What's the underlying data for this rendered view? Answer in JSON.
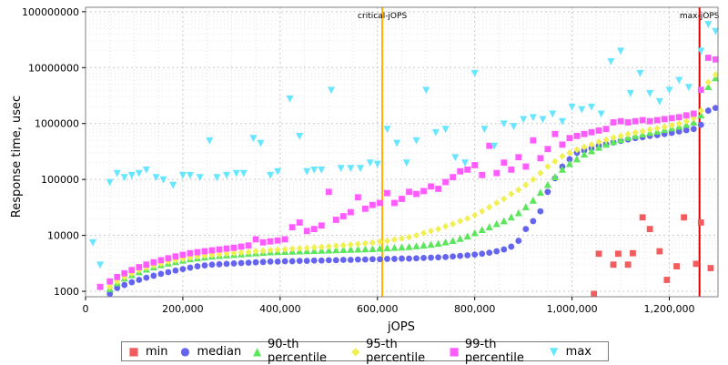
{
  "chart_data": {
    "type": "scatter",
    "xlabel": "jOPS",
    "ylabel": "Response time, usec",
    "y_scale": "log",
    "xlim": [
      0,
      1300000
    ],
    "ylim": [
      800,
      120000000
    ],
    "legend_position": "bottom",
    "x_ticks": [
      "0",
      "200,000",
      "400,000",
      "600,000",
      "800,000",
      "1,000,000",
      "1,200,000"
    ],
    "y_ticks": [
      "1000",
      "10000",
      "100000",
      "1000000",
      "10000000",
      "100000000"
    ],
    "markers": [
      {
        "label": "critical-jOPS",
        "x": 610000,
        "color": "#ffb000"
      },
      {
        "label": "max-jOPS",
        "x": 1262000,
        "color": "#dd0000"
      }
    ],
    "series": [
      {
        "name": "min",
        "color": "#f25c5c",
        "symbol": "square",
        "x": [
          1045000,
          1055000,
          1085000,
          1095000,
          1115000,
          1125000,
          1145000,
          1160000,
          1180000,
          1195000,
          1215000,
          1230000,
          1255000,
          1265000,
          1285000
        ],
        "y": [
          900,
          4700,
          3000,
          4700,
          3000,
          4800,
          21000,
          13000,
          5200,
          1600,
          2800,
          21000,
          3100,
          17000,
          2600
        ]
      },
      {
        "name": "median",
        "color": "#6464f0",
        "symbol": "circle",
        "x": [
          50000,
          65000,
          80000,
          95000,
          110000,
          125000,
          140000,
          155000,
          170000,
          185000,
          200000,
          215000,
          230000,
          245000,
          260000,
          275000,
          290000,
          305000,
          320000,
          335000,
          350000,
          365000,
          380000,
          395000,
          410000,
          425000,
          440000,
          455000,
          470000,
          485000,
          500000,
          515000,
          530000,
          545000,
          560000,
          575000,
          590000,
          605000,
          620000,
          635000,
          650000,
          665000,
          680000,
          695000,
          710000,
          725000,
          740000,
          755000,
          770000,
          785000,
          800000,
          815000,
          830000,
          845000,
          860000,
          875000,
          890000,
          905000,
          920000,
          935000,
          950000,
          965000,
          980000,
          995000,
          1010000,
          1025000,
          1040000,
          1055000,
          1070000,
          1085000,
          1100000,
          1115000,
          1130000,
          1145000,
          1160000,
          1175000,
          1190000,
          1205000,
          1220000,
          1235000,
          1250000,
          1265000,
          1280000,
          1295000
        ],
        "y": [
          900,
          1150,
          1300,
          1450,
          1600,
          1750,
          1900,
          2050,
          2200,
          2350,
          2500,
          2650,
          2800,
          2900,
          3000,
          3050,
          3100,
          3150,
          3200,
          3250,
          3300,
          3350,
          3400,
          3400,
          3450,
          3450,
          3500,
          3500,
          3550,
          3550,
          3600,
          3600,
          3650,
          3650,
          3700,
          3700,
          3750,
          3750,
          3800,
          3800,
          3850,
          3850,
          3900,
          3950,
          4000,
          4050,
          4100,
          4200,
          4300,
          4400,
          4550,
          4700,
          4900,
          5200,
          5600,
          6300,
          8000,
          13000,
          18000,
          27000,
          60000,
          105000,
          170000,
          230000,
          300000,
          330000,
          360000,
          400000,
          430000,
          460000,
          490000,
          520000,
          550000,
          570000,
          600000,
          620000,
          650000,
          680000,
          720000,
          760000,
          800000,
          950000,
          1700000,
          1900000
        ]
      },
      {
        "name": "90-th percentile",
        "color": "#5ce65c",
        "symbol": "triangle-up",
        "x": [
          50000,
          65000,
          80000,
          95000,
          110000,
          125000,
          140000,
          155000,
          170000,
          185000,
          200000,
          215000,
          230000,
          245000,
          260000,
          275000,
          290000,
          305000,
          320000,
          335000,
          350000,
          365000,
          380000,
          395000,
          410000,
          425000,
          440000,
          455000,
          470000,
          485000,
          500000,
          515000,
          530000,
          545000,
          560000,
          575000,
          590000,
          605000,
          620000,
          635000,
          650000,
          665000,
          680000,
          695000,
          710000,
          725000,
          740000,
          755000,
          770000,
          785000,
          800000,
          815000,
          830000,
          845000,
          860000,
          875000,
          890000,
          905000,
          920000,
          935000,
          950000,
          965000,
          980000,
          995000,
          1010000,
          1025000,
          1040000,
          1055000,
          1070000,
          1085000,
          1100000,
          1115000,
          1130000,
          1145000,
          1160000,
          1175000,
          1190000,
          1205000,
          1220000,
          1235000,
          1250000,
          1265000,
          1280000,
          1295000
        ],
        "y": [
          1100,
          1400,
          1700,
          1950,
          2200,
          2450,
          2700,
          2950,
          3150,
          3350,
          3550,
          3750,
          3900,
          4050,
          4200,
          4300,
          4400,
          4500,
          4600,
          4700,
          4800,
          4900,
          5000,
          5050,
          5100,
          5150,
          5200,
          5250,
          5300,
          5350,
          5400,
          5450,
          5500,
          5550,
          5600,
          5650,
          5700,
          5800,
          5900,
          6000,
          6100,
          6200,
          6400,
          6600,
          6800,
          7100,
          7500,
          8000,
          8700,
          9600,
          11000,
          12500,
          14000,
          16000,
          18000,
          21000,
          25000,
          32000,
          42000,
          58000,
          80000,
          110000,
          150000,
          190000,
          230000,
          280000,
          320000,
          370000,
          420000,
          470000,
          510000,
          560000,
          600000,
          640000,
          680000,
          720000,
          770000,
          820000,
          880000,
          950000,
          1050000,
          1400000,
          4500000,
          6500000
        ]
      },
      {
        "name": "95-th percentile",
        "color": "#f0f050",
        "symbol": "diamond",
        "x": [
          50000,
          65000,
          80000,
          95000,
          110000,
          125000,
          140000,
          155000,
          170000,
          185000,
          200000,
          215000,
          230000,
          245000,
          260000,
          275000,
          290000,
          305000,
          320000,
          335000,
          350000,
          365000,
          380000,
          395000,
          410000,
          425000,
          440000,
          455000,
          470000,
          485000,
          500000,
          515000,
          530000,
          545000,
          560000,
          575000,
          590000,
          605000,
          620000,
          635000,
          650000,
          665000,
          680000,
          695000,
          710000,
          725000,
          740000,
          755000,
          770000,
          785000,
          800000,
          815000,
          830000,
          845000,
          860000,
          875000,
          890000,
          905000,
          920000,
          935000,
          950000,
          965000,
          980000,
          995000,
          1010000,
          1025000,
          1040000,
          1055000,
          1070000,
          1085000,
          1100000,
          1115000,
          1130000,
          1145000,
          1160000,
          1175000,
          1190000,
          1205000,
          1220000,
          1235000,
          1250000,
          1265000,
          1280000,
          1295000
        ],
        "y": [
          1200,
          1500,
          1800,
          2100,
          2400,
          2650,
          2900,
          3150,
          3400,
          3600,
          3800,
          4000,
          4200,
          4350,
          4500,
          4600,
          4750,
          4850,
          4950,
          5050,
          5200,
          5300,
          5450,
          5550,
          5650,
          5750,
          5850,
          5950,
          6100,
          6200,
          6350,
          6500,
          6650,
          6800,
          7000,
          7200,
          7400,
          7700,
          8000,
          8400,
          8800,
          9300,
          10000,
          11000,
          12000,
          13000,
          14500,
          16000,
          18000,
          20000,
          23000,
          27000,
          32000,
          38000,
          45000,
          55000,
          65000,
          80000,
          100000,
          130000,
          170000,
          210000,
          260000,
          300000,
          340000,
          380000,
          420000,
          470000,
          510000,
          560000,
          600000,
          650000,
          690000,
          730000,
          780000,
          820000,
          870000,
          930000,
          1000000,
          1100000,
          1250000,
          1700000,
          5500000,
          7500000
        ]
      },
      {
        "name": "99-th percentile",
        "color": "#ff5cff",
        "symbol": "square",
        "x": [
          30000,
          50000,
          65000,
          80000,
          95000,
          110000,
          125000,
          140000,
          155000,
          170000,
          185000,
          200000,
          215000,
          230000,
          245000,
          260000,
          275000,
          290000,
          305000,
          320000,
          335000,
          350000,
          365000,
          380000,
          395000,
          410000,
          425000,
          440000,
          455000,
          470000,
          485000,
          500000,
          515000,
          530000,
          545000,
          560000,
          575000,
          590000,
          605000,
          620000,
          635000,
          650000,
          665000,
          680000,
          695000,
          710000,
          725000,
          740000,
          755000,
          770000,
          785000,
          800000,
          815000,
          830000,
          845000,
          860000,
          875000,
          890000,
          905000,
          920000,
          935000,
          950000,
          965000,
          980000,
          995000,
          1010000,
          1025000,
          1040000,
          1055000,
          1070000,
          1085000,
          1100000,
          1115000,
          1130000,
          1145000,
          1160000,
          1175000,
          1190000,
          1205000,
          1220000,
          1235000,
          1250000,
          1265000,
          1280000,
          1295000
        ],
        "y": [
          1200,
          1500,
          1800,
          2100,
          2400,
          2700,
          3000,
          3300,
          3600,
          3900,
          4200,
          4500,
          4800,
          5000,
          5200,
          5400,
          5600,
          5800,
          6000,
          6300,
          6600,
          8500,
          7500,
          7800,
          8100,
          8500,
          14000,
          17000,
          12000,
          13000,
          15000,
          60000,
          19000,
          22000,
          26000,
          48000,
          30000,
          35000,
          38000,
          57000,
          38000,
          45000,
          60000,
          55000,
          62000,
          75000,
          68000,
          90000,
          110000,
          140000,
          150000,
          180000,
          120000,
          400000,
          130000,
          200000,
          150000,
          250000,
          170000,
          500000,
          240000,
          350000,
          650000,
          420000,
          550000,
          600000,
          650000,
          700000,
          750000,
          800000,
          1050000,
          1100000,
          1050000,
          1100000,
          1150000,
          1100000,
          1150000,
          1200000,
          1250000,
          1300000,
          1400000,
          1500000,
          4000000,
          15000000,
          14000000
        ]
      },
      {
        "name": "max",
        "color": "#66e6ff",
        "symbol": "triangle-down",
        "x": [
          15000,
          30000,
          50000,
          65000,
          80000,
          95000,
          110000,
          125000,
          145000,
          160000,
          180000,
          200000,
          215000,
          235000,
          255000,
          270000,
          290000,
          310000,
          325000,
          345000,
          360000,
          380000,
          395000,
          420000,
          440000,
          455000,
          470000,
          485000,
          505000,
          525000,
          545000,
          565000,
          585000,
          600000,
          620000,
          640000,
          660000,
          680000,
          700000,
          720000,
          740000,
          760000,
          780000,
          800000,
          820000,
          840000,
          860000,
          880000,
          900000,
          920000,
          940000,
          960000,
          980000,
          1000000,
          1020000,
          1040000,
          1060000,
          1080000,
          1100000,
          1120000,
          1140000,
          1160000,
          1180000,
          1200000,
          1220000,
          1240000,
          1265000,
          1280000,
          1295000
        ],
        "y": [
          7500,
          3000,
          90000,
          130000,
          110000,
          120000,
          130000,
          150000,
          110000,
          100000,
          80000,
          120000,
          120000,
          110000,
          500000,
          110000,
          120000,
          130000,
          130000,
          550000,
          450000,
          120000,
          140000,
          2800000,
          600000,
          140000,
          150000,
          150000,
          4000000,
          160000,
          160000,
          160000,
          200000,
          190000,
          800000,
          450000,
          200000,
          500000,
          4000000,
          700000,
          800000,
          250000,
          200000,
          8000000,
          800000,
          400000,
          1000000,
          900000,
          1200000,
          1300000,
          1200000,
          1500000,
          1100000,
          2000000,
          1800000,
          2000000,
          1500000,
          13000000,
          20000000,
          3500000,
          8000000,
          3500000,
          2500000,
          4000000,
          6000000,
          4500000,
          20000000,
          60000000,
          45000000
        ]
      }
    ]
  }
}
